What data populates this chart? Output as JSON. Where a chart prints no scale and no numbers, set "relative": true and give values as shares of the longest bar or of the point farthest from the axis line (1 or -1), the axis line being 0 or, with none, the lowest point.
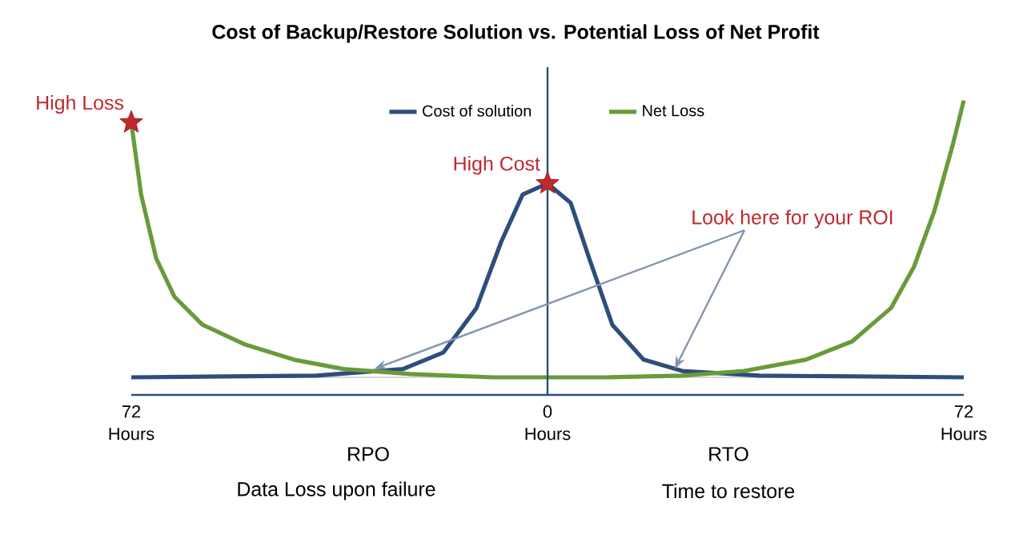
{
  "chart_data": {
    "type": "line",
    "title": "Cost of Backup/Restore Solution vs. Potential Loss of Net Profit",
    "relative": true,
    "xlim": [
      -72,
      72
    ],
    "xticks": [
      {
        "value": -72,
        "label": "72 Hours"
      },
      {
        "value": 0,
        "label": "0 Hours"
      },
      {
        "value": 72,
        "label": "72 Hours"
      }
    ],
    "series": [
      {
        "name": "Cost of solution",
        "color": "#2e4d7b",
        "x": [
          -72,
          -40,
          -25,
          -18,
          -12.3,
          -8,
          -4.3,
          0,
          4,
          7.2,
          11.2,
          16.6,
          23.3,
          36.7,
          72
        ],
        "values": [
          0,
          0.006,
          0.03,
          0.09,
          0.25,
          0.49,
          0.66,
          0.7,
          0.63,
          0.43,
          0.19,
          0.064,
          0.023,
          0.006,
          0
        ]
      },
      {
        "name": "Net Loss",
        "color": "#6a9a3a",
        "x": [
          -72,
          -70.3,
          -67.7,
          -64.5,
          -59.7,
          -52.5,
          -43.9,
          -35.3,
          -23.8,
          -9.5,
          0,
          9.9,
          23.3,
          34,
          44.7,
          52.7,
          59.4,
          63.4,
          66.9,
          70.1,
          72
        ],
        "values": [
          0.92,
          0.66,
          0.43,
          0.29,
          0.19,
          0.12,
          0.064,
          0.03,
          0.012,
          0,
          0,
          0,
          0.006,
          0.023,
          0.064,
          0.13,
          0.25,
          0.4,
          0.6,
          0.84,
          1
        ]
      }
    ],
    "legend": "top",
    "ref_lines": [
      {
        "axis": "x",
        "value": 0,
        "color": "#2e4d7b"
      }
    ],
    "annotations": [
      {
        "text": "High Loss",
        "x": -72,
        "y": 0.92
      },
      {
        "text": "High Cost",
        "x": 0,
        "y": 0.7
      },
      "Look here for your ROI",
      "RPO",
      "Data Loss upon failure",
      "RTO",
      "Time to restore"
    ]
  }
}
